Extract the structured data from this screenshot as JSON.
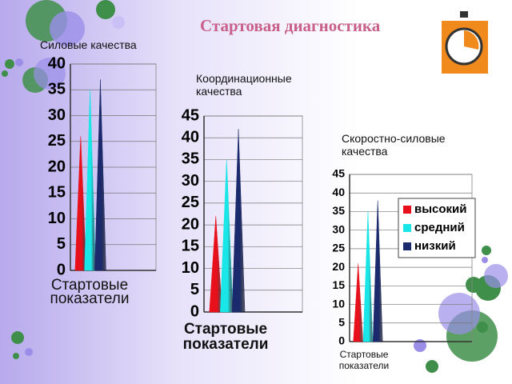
{
  "slide_title": "Стартовая диагностика",
  "chart_data": [
    {
      "type": "bar",
      "title": "Силовые качества",
      "categories": [
        "Стартовые показатели"
      ],
      "series": [
        {
          "color": "#e8101a",
          "values": [
            26
          ]
        },
        {
          "color": "#19e6e6",
          "values": [
            35
          ]
        },
        {
          "color": "#1a2a6c",
          "values": [
            37
          ]
        }
      ],
      "ylim": [
        0,
        40
      ],
      "yticks": [
        0,
        5,
        10,
        15,
        20,
        25,
        30,
        35,
        40
      ],
      "grid": true
    },
    {
      "type": "bar",
      "title": "Координационные качества",
      "categories": [
        "Стартовые показатели"
      ],
      "series": [
        {
          "color": "#e8101a",
          "values": [
            22
          ]
        },
        {
          "color": "#19e6e6",
          "values": [
            35
          ]
        },
        {
          "color": "#1a2a6c",
          "values": [
            42
          ]
        }
      ],
      "ylim": [
        0,
        45
      ],
      "yticks": [
        0,
        5,
        10,
        15,
        20,
        25,
        30,
        35,
        40,
        45
      ],
      "grid": true
    },
    {
      "type": "bar",
      "title": "Скоростно-силовые качества",
      "categories": [
        "Стартовые показатели"
      ],
      "series": [
        {
          "name": "высокий",
          "color": "#e8101a",
          "values": [
            21
          ]
        },
        {
          "name": "средний",
          "color": "#19e6e6",
          "values": [
            35
          ]
        },
        {
          "name": "низкий",
          "color": "#1a2a6c",
          "values": [
            38
          ]
        }
      ],
      "ylim": [
        0,
        45
      ],
      "yticks": [
        0,
        5,
        10,
        15,
        20,
        25,
        30,
        35,
        40,
        45
      ],
      "grid": true,
      "legend": "right"
    }
  ]
}
